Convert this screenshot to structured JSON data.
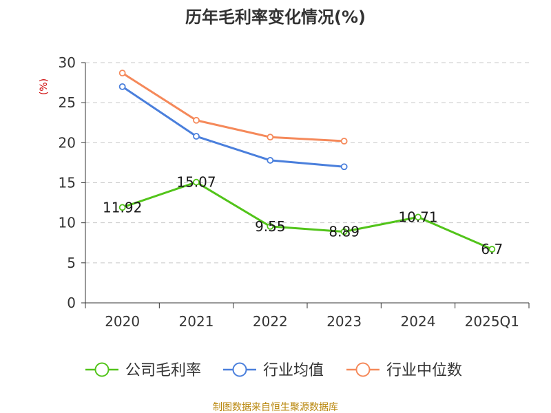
{
  "chart_data": {
    "type": "line",
    "title": "历年毛利率变化情况(%)",
    "ylabel": "(%)",
    "xlabel": "",
    "ylim": [
      0,
      30
    ],
    "yticks": [
      0,
      5,
      10,
      15,
      20,
      25,
      30
    ],
    "grid": true,
    "legend_position": "bottom",
    "categories": [
      "2020",
      "2021",
      "2022",
      "2023",
      "2024",
      "2025Q1"
    ],
    "series": [
      {
        "name": "公司毛利率",
        "color": "#52c41a",
        "show_labels": true,
        "labels": [
          "11.92",
          "15.07",
          "9.55",
          "8.89",
          "10.71",
          "6.7"
        ],
        "values": [
          11.92,
          15.07,
          9.55,
          8.89,
          10.71,
          6.7
        ]
      },
      {
        "name": "行业均值",
        "color": "#4a7fdc",
        "show_labels": false,
        "values": [
          27.0,
          20.8,
          17.8,
          17.0,
          null,
          null
        ]
      },
      {
        "name": "行业中位数",
        "color": "#f5895a",
        "show_labels": false,
        "values": [
          28.7,
          22.8,
          20.7,
          20.2,
          null,
          null
        ]
      }
    ],
    "source": "制图数据来自恒生聚源数据库"
  }
}
